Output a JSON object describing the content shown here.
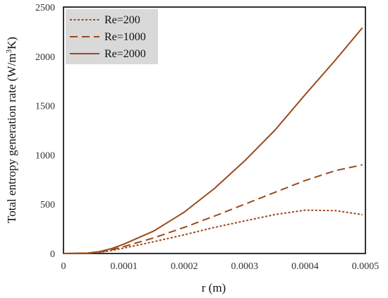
{
  "chart_data": {
    "type": "line",
    "title": "",
    "xlabel": "r (m)",
    "ylabel": "Total entropy generation rate (W/m",
    "ylabel_sup": "3",
    "ylabel_tail": "K)",
    "xlim": [
      0,
      0.0005
    ],
    "ylim": [
      0,
      2500
    ],
    "xticks": [
      "0",
      "0.0001",
      "0.0002",
      "0.0003",
      "0.0004",
      "0.0005"
    ],
    "yticks": [
      "0",
      "500",
      "1000",
      "1500",
      "2000",
      "2500"
    ],
    "grid": false,
    "legend_position": "top-left",
    "line_color": "#9c4a1c",
    "legend_bg": "#d9d9d9",
    "series": [
      {
        "name": "Re=200",
        "style": "dotted",
        "x": [
          0,
          4e-05,
          6e-05,
          8e-05,
          0.0001,
          0.00015,
          0.0002,
          0.00025,
          0.0003,
          0.00035,
          0.0004,
          0.00045,
          0.000495
        ],
        "y": [
          0,
          2,
          12,
          30,
          55,
          120,
          190,
          265,
          330,
          395,
          440,
          435,
          395
        ]
      },
      {
        "name": "Re=1000",
        "style": "dashed",
        "x": [
          0,
          4e-05,
          6e-05,
          8e-05,
          0.0001,
          0.00015,
          0.0002,
          0.00025,
          0.0003,
          0.00035,
          0.0004,
          0.00045,
          0.000495
        ],
        "y": [
          0,
          3,
          15,
          38,
          70,
          160,
          265,
          380,
          500,
          620,
          740,
          840,
          900
        ]
      },
      {
        "name": "Re=2000",
        "style": "solid",
        "x": [
          0,
          4e-05,
          6e-05,
          8e-05,
          0.0001,
          0.00015,
          0.0002,
          0.00025,
          0.0003,
          0.00035,
          0.0004,
          0.00045,
          0.000495
        ],
        "y": [
          0,
          4,
          20,
          50,
          95,
          230,
          420,
          660,
          940,
          1250,
          1610,
          1960,
          2290
        ]
      }
    ]
  }
}
